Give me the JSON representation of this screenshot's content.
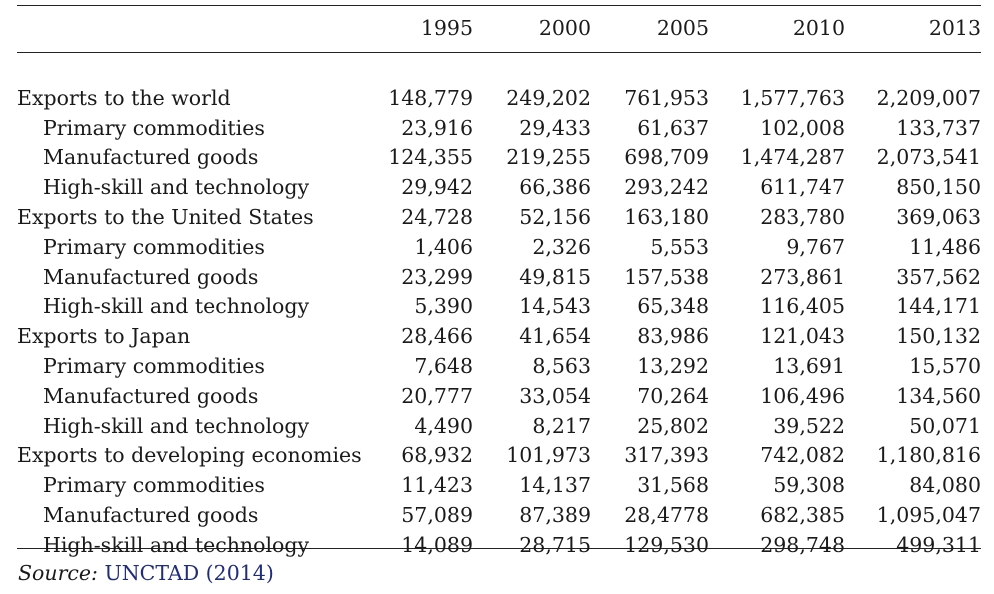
{
  "table": {
    "header": [
      "",
      "1995",
      "2000",
      "2005",
      "2010",
      "2013"
    ],
    "rows": [
      {
        "label": "Exports to the world",
        "sub": false,
        "values": [
          "148,779",
          "249,202",
          "761,953",
          "1,577,763",
          "2,209,007"
        ]
      },
      {
        "label": "Primary commodities",
        "sub": true,
        "values": [
          "23,916",
          "29,433",
          "61,637",
          "102,008",
          "133,737"
        ]
      },
      {
        "label": "Manufactured goods",
        "sub": true,
        "values": [
          "124,355",
          "219,255",
          "698,709",
          "1,474,287",
          "2,073,541"
        ]
      },
      {
        "label": "High-skill and technology",
        "sub": true,
        "values": [
          "29,942",
          "66,386",
          "293,242",
          "611,747",
          "850,150"
        ]
      },
      {
        "label": "Exports to the United States",
        "sub": false,
        "values": [
          "24,728",
          "52,156",
          "163,180",
          "283,780",
          "369,063"
        ]
      },
      {
        "label": "Primary commodities",
        "sub": true,
        "values": [
          "1,406",
          "2,326",
          "5,553",
          "9,767",
          "11,486"
        ]
      },
      {
        "label": "Manufactured goods",
        "sub": true,
        "values": [
          "23,299",
          "49,815",
          "157,538",
          "273,861",
          "357,562"
        ]
      },
      {
        "label": "High-skill and technology",
        "sub": true,
        "values": [
          "5,390",
          "14,543",
          "65,348",
          "116,405",
          "144,171"
        ]
      },
      {
        "label": "Exports to Japan",
        "sub": false,
        "values": [
          "28,466",
          "41,654",
          "83,986",
          "121,043",
          "150,132"
        ]
      },
      {
        "label": "Primary commodities",
        "sub": true,
        "values": [
          "7,648",
          "8,563",
          "13,292",
          "13,691",
          "15,570"
        ]
      },
      {
        "label": "Manufactured goods",
        "sub": true,
        "values": [
          "20,777",
          "33,054",
          "70,264",
          "106,496",
          "134,560"
        ]
      },
      {
        "label": "High-skill and technology",
        "sub": true,
        "values": [
          "4,490",
          "8,217",
          "25,802",
          "39,522",
          "50,071"
        ]
      },
      {
        "label": "Exports to developing economies",
        "sub": false,
        "values": [
          "68,932",
          "101,973",
          "317,393",
          "742,082",
          "1,180,816"
        ]
      },
      {
        "label": "Primary commodities",
        "sub": true,
        "values": [
          "11,423",
          "14,137",
          "31,568",
          "59,308",
          "84,080"
        ]
      },
      {
        "label": "Manufactured goods",
        "sub": true,
        "values": [
          "57,089",
          "87,389",
          "28,4778",
          "682,385",
          "1,095,047"
        ]
      },
      {
        "label": "High-skill and technology",
        "sub": true,
        "values": [
          "14,089",
          "28,715",
          "129,530",
          "298,748",
          "499,311"
        ]
      }
    ]
  },
  "source": {
    "label": "Source:",
    "reference": "UNCTAD (2014)"
  },
  "colors": {
    "rule": "#222222",
    "reference_link": "#1f2d7a"
  }
}
